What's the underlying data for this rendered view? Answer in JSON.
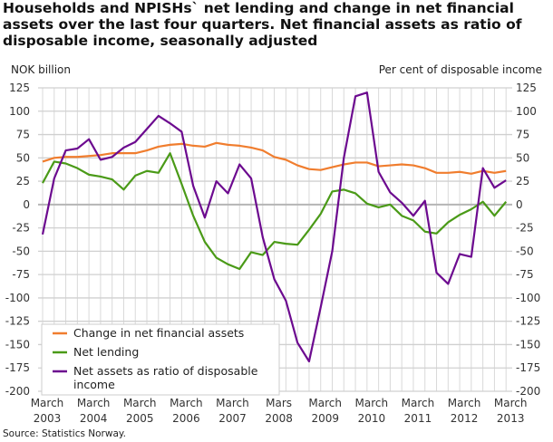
{
  "title": "Households and NPISHs` net lending and change in net financial assets over the last four quarters. Net financial assets as ratio of disposable income, seasonally adjusted",
  "source": "Source: Statistics Norway.",
  "chart_data": {
    "type": "line",
    "left_axis_label": "NOK billion",
    "right_axis_label": "Per cent of disposable income",
    "ylim": [
      -200,
      125
    ],
    "y2lim": [
      -200,
      125
    ],
    "yticks": [
      125,
      100,
      75,
      50,
      25,
      0,
      -25,
      -50,
      -75,
      -100,
      -125,
      -150,
      -175,
      -200
    ],
    "grid": true,
    "legend_placement": "bottom-left",
    "x_tick_labels": [
      [
        "March",
        "2003"
      ],
      [
        "March",
        "2004"
      ],
      [
        "March",
        "2005"
      ],
      [
        "March",
        "2006"
      ],
      [
        "March",
        "2007"
      ],
      [
        "Mars",
        "2008"
      ],
      [
        "March",
        "2009"
      ],
      [
        "March",
        "2010"
      ],
      [
        "March",
        "2011"
      ],
      [
        "March",
        "2012"
      ],
      [
        "March",
        "2013"
      ]
    ],
    "x_start": "2003Q1",
    "x_end": "2013Q1",
    "frequency": "quarterly",
    "series": [
      {
        "name": "Change in net financial assets",
        "axis": "left",
        "color": "#f07d2e",
        "values": [
          46,
          50,
          51,
          51,
          52,
          53,
          55,
          55,
          55,
          58,
          62,
          64,
          65,
          63,
          62,
          66,
          64,
          63,
          61,
          58,
          51,
          48,
          42,
          38,
          37,
          40,
          43,
          45,
          45,
          41,
          42,
          43,
          42,
          39,
          34,
          34,
          35,
          33,
          36,
          34,
          36
        ]
      },
      {
        "name": "Net lending",
        "axis": "left",
        "color": "#4a9a17",
        "values": [
          23,
          46,
          44,
          39,
          32,
          30,
          27,
          16,
          31,
          36,
          34,
          55,
          22,
          -12,
          -40,
          -57,
          -64,
          -69,
          -51,
          -54,
          -40,
          -42,
          -43,
          -27,
          -10,
          14,
          16,
          12,
          1,
          -3,
          0,
          -12,
          -17,
          -29,
          -31,
          -19,
          -11,
          -5,
          3,
          -12,
          3
        ]
      },
      {
        "name": "Net assets as ratio of disposable income",
        "axis": "right",
        "color": "#6c0a8f",
        "values": [
          -32,
          28,
          58,
          60,
          70,
          48,
          51,
          61,
          67,
          81,
          95,
          87,
          78,
          20,
          -14,
          25,
          12,
          43,
          28,
          -35,
          -80,
          -103,
          -148,
          -168,
          -110,
          -50,
          50,
          116,
          120,
          35,
          13,
          2,
          -12,
          4,
          -73,
          -85,
          -53,
          -56,
          39,
          18,
          26
        ]
      }
    ]
  }
}
